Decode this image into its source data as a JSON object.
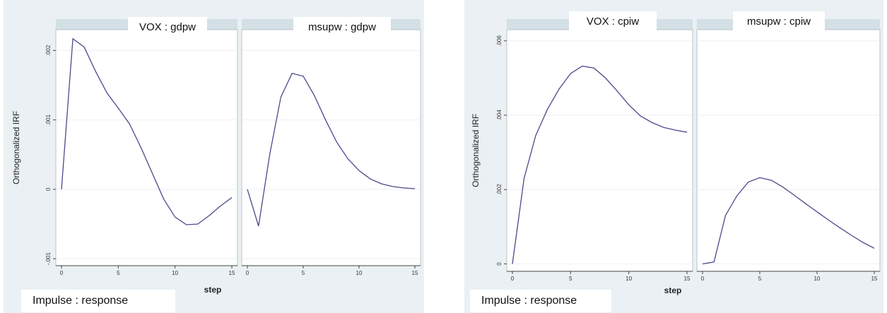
{
  "chart_data": [
    {
      "type": "line",
      "ylabel": "Orthogonalized IRF",
      "xlabel": "step",
      "footer": "Impulse : response",
      "ylim": [
        -0.0011,
        0.0023
      ],
      "yticks": [
        -0.001,
        0,
        0.001,
        0.002
      ],
      "ytick_labels": [
        "-.001",
        "0",
        ".001",
        ".002"
      ],
      "xlim": [
        0,
        15
      ],
      "xticks": [
        0,
        5,
        10,
        15
      ],
      "line_color": "#4a4a8c",
      "panels": [
        {
          "title": "VOX : gdpw",
          "x": [
            0,
            1,
            2,
            3,
            4,
            5,
            6,
            7,
            8,
            9,
            10,
            11,
            12,
            13,
            14,
            15
          ],
          "y": [
            0.0,
            0.00217,
            0.00205,
            0.0017,
            0.00139,
            0.00117,
            0.00094,
            0.0006,
            0.00023,
            -0.00014,
            -0.0004,
            -0.00051,
            -0.0005,
            -0.00038,
            -0.00024,
            -0.00012
          ]
        },
        {
          "title": "msupw : gdpw",
          "x": [
            0,
            1,
            2,
            3,
            4,
            5,
            6,
            7,
            8,
            9,
            10,
            11,
            12,
            13,
            14,
            15
          ],
          "y": [
            0.0,
            -0.00053,
            0.0005,
            0.00133,
            0.00167,
            0.00163,
            0.00135,
            0.001,
            0.00068,
            0.00044,
            0.00027,
            0.00015,
            8e-05,
            4e-05,
            2e-05,
            1e-05
          ]
        }
      ]
    },
    {
      "type": "line",
      "ylabel": "Orthogonalized IRF",
      "xlabel": "step",
      "footer": "Impulse : response",
      "ylim": [
        -0.0002,
        0.0063
      ],
      "yticks": [
        0,
        0.002,
        0.004,
        0.006
      ],
      "ytick_labels": [
        "0",
        ".002",
        ".004",
        ".006"
      ],
      "xlim": [
        0,
        15
      ],
      "xticks": [
        0,
        5,
        10,
        15
      ],
      "line_color": "#4a4a8c",
      "panels": [
        {
          "title": "VOX : cpiw",
          "x": [
            0,
            1,
            2,
            3,
            4,
            5,
            6,
            7,
            8,
            9,
            10,
            11,
            12,
            13,
            14,
            15
          ],
          "y": [
            0.0,
            0.0023,
            0.00345,
            0.00415,
            0.0047,
            0.00512,
            0.00532,
            0.00527,
            0.005,
            0.00465,
            0.00428,
            0.00398,
            0.0038,
            0.00367,
            0.0036,
            0.00354
          ]
        },
        {
          "title": "msupw : cpiw",
          "x": [
            0,
            1,
            2,
            3,
            4,
            5,
            6,
            7,
            8,
            9,
            10,
            11,
            12,
            13,
            14,
            15
          ],
          "y": [
            0.0,
            5e-05,
            0.0013,
            0.00183,
            0.0022,
            0.00232,
            0.00225,
            0.00207,
            0.00185,
            0.00162,
            0.0014,
            0.00118,
            0.00097,
            0.00077,
            0.00058,
            0.00042
          ]
        }
      ]
    }
  ]
}
